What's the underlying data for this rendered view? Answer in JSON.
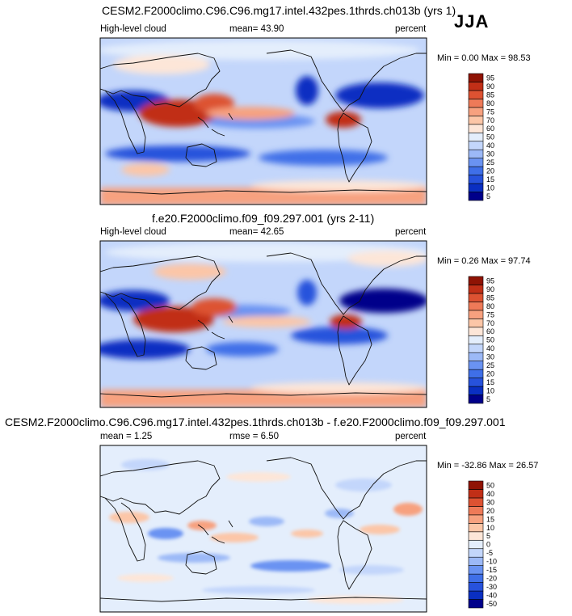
{
  "season": "JJA",
  "colors": {
    "pos_scale": [
      "#00008a",
      "#0a2fc2",
      "#2752dc",
      "#3f6fe8",
      "#6a93f2",
      "#9cb9f7",
      "#c3d6fb",
      "#e4eefc",
      "#fde6d8",
      "#fcc6a7",
      "#f7a17f",
      "#ee7a58",
      "#dd5232",
      "#c12f17",
      "#8f1304"
    ],
    "diff_scale": [
      "#00008a",
      "#0a2fc2",
      "#2752dc",
      "#3f6fe8",
      "#6a93f2",
      "#9cb9f7",
      "#c3d6fb",
      "#e4eefc",
      "#fde6d8",
      "#fcc6a7",
      "#f7a17f",
      "#ee7a58",
      "#dd5232",
      "#c12f17",
      "#8f1304"
    ]
  },
  "chart_data": [
    {
      "type": "heatmap",
      "title": "CESM2.F2000climo.C96.C96.mg17.intel.432pes.1thrds.ch013b (yrs 1)",
      "left_label": "High-level cloud",
      "center_label": "mean=  43.90",
      "right_label": "percent",
      "minmax_label": "Min =  0.00 Max =  98.53",
      "min": 0.0,
      "max": 98.53,
      "mean": 43.9,
      "colorbar_ticks": [
        "5",
        "10",
        "15",
        "20",
        "25",
        "30",
        "40",
        "50",
        "60",
        "70",
        "75",
        "80",
        "85",
        "90",
        "95"
      ]
    },
    {
      "type": "heatmap",
      "title": "f.e20.F2000climo.f09_f09.297.001 (yrs 2-11)",
      "left_label": "High-level cloud",
      "center_label": "mean=  42.65",
      "right_label": "percent",
      "minmax_label": "Min =  0.26 Max =  97.74",
      "min": 0.26,
      "max": 97.74,
      "mean": 42.65,
      "colorbar_ticks": [
        "5",
        "10",
        "15",
        "20",
        "25",
        "30",
        "40",
        "50",
        "60",
        "70",
        "75",
        "80",
        "85",
        "90",
        "95"
      ]
    },
    {
      "type": "heatmap",
      "title": "CESM2.F2000climo.C96.C96.mg17.intel.432pes.1thrds.ch013b - f.e20.F2000climo.f09_f09.297.001",
      "left_label": "mean =   1.25",
      "center_label": "rmse =   6.50",
      "right_label": "percent",
      "minmax_label": "Min = -32.86 Max =  26.57",
      "min": -32.86,
      "max": 26.57,
      "mean": 1.25,
      "rmse": 6.5,
      "colorbar_ticks": [
        "-50",
        "-40",
        "-30",
        "-20",
        "-15",
        "-10",
        "-5",
        "0",
        "5",
        "10",
        "15",
        "20",
        "30",
        "40",
        "50"
      ]
    }
  ]
}
